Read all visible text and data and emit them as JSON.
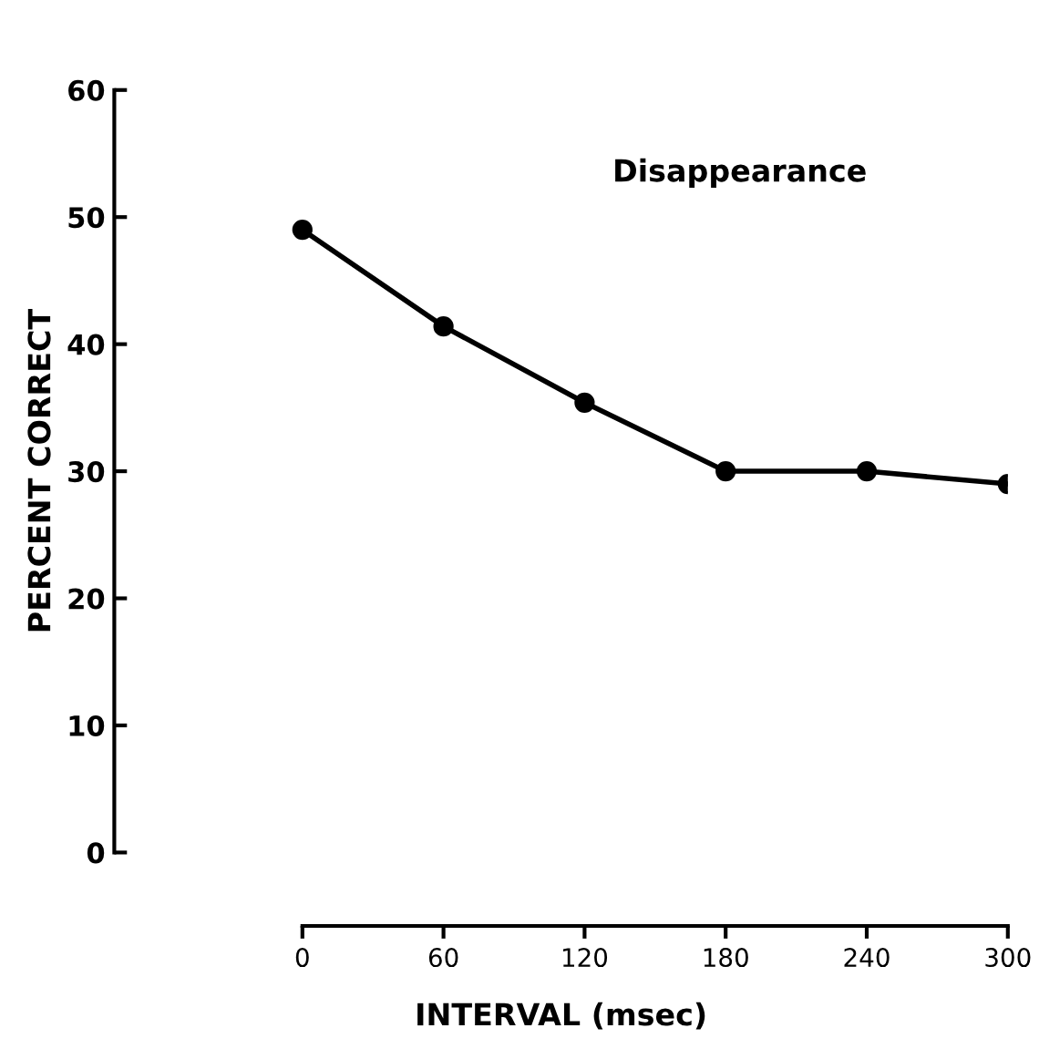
{
  "chart_data": {
    "type": "line",
    "x": [
      0,
      60,
      120,
      180,
      240,
      300
    ],
    "series": [
      {
        "color": "#000000",
        "values": [
          49,
          41.4,
          35.4,
          30,
          30,
          29
        ]
      }
    ],
    "xlim": [
      -80,
      300
    ],
    "ylim": [
      0,
      60
    ],
    "xticks": [
      0,
      60,
      120,
      180,
      240,
      300
    ],
    "yticks": [
      0,
      10,
      20,
      30,
      40,
      50,
      60
    ],
    "xlabel": "INTERVAL (msec)",
    "ylabel": "PERCENT CORRECT",
    "annotations": [
      "Disappearance"
    ],
    "marker": "circle",
    "line_style": "solid",
    "grid": false,
    "legend": false
  }
}
